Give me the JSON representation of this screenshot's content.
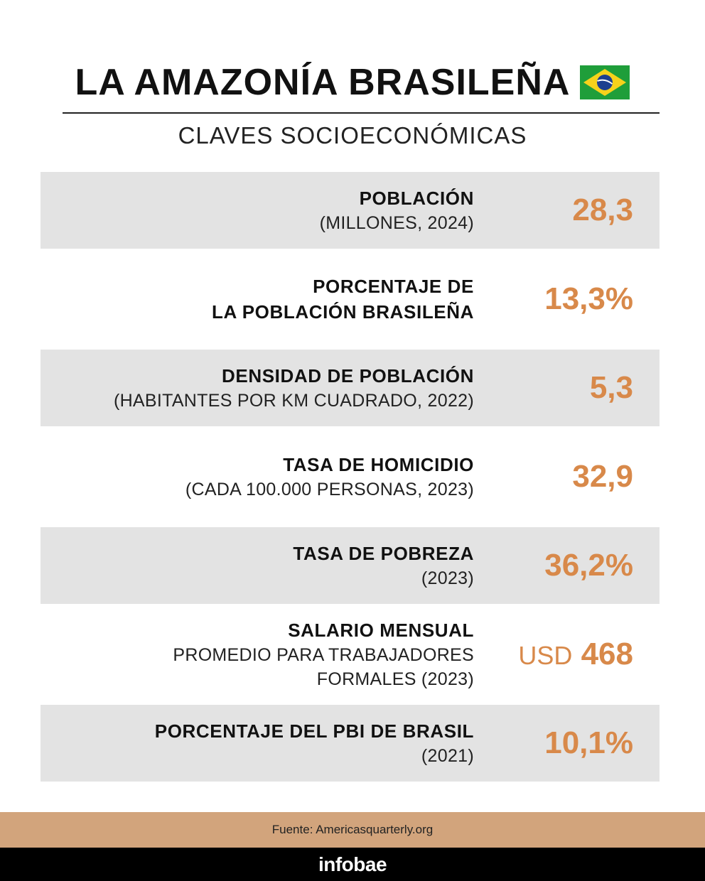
{
  "header": {
    "title": "LA AMAZONÍA BRASILEÑA",
    "subtitle": "CLAVES SOCIOECONÓMICAS"
  },
  "rows": [
    {
      "label_lines": [
        "POBLACIÓN"
      ],
      "sublabel_lines": [
        "(MILLONES, 2024)"
      ],
      "value": "28,3"
    },
    {
      "label_lines": [
        "PORCENTAJE DE",
        "LA POBLACIÓN BRASILEÑA"
      ],
      "value": "13,3%"
    },
    {
      "label_lines": [
        "DENSIDAD DE POBLACIÓN"
      ],
      "sublabel_lines": [
        "(HABITANTES POR KM CUADRADO, 2022)"
      ],
      "value": "5,3"
    },
    {
      "label_lines": [
        "TASA DE HOMICIDIO"
      ],
      "sublabel_lines": [
        "(CADA 100.000 PERSONAS, 2023)"
      ],
      "value": "32,9"
    },
    {
      "label_lines": [
        "TASA DE POBREZA"
      ],
      "sublabel_lines": [
        "(2023)"
      ],
      "value": "36,2%"
    },
    {
      "label_lines": [
        "SALARIO MENSUAL"
      ],
      "sublabel_lines": [
        "PROMEDIO PARA TRABAJADORES",
        "FORMALES (2023)"
      ],
      "unit": "USD",
      "value": "468"
    },
    {
      "label_lines": [
        "PORCENTAJE DEL PBI DE BRASIL"
      ],
      "sublabel_lines": [
        "(2021)"
      ],
      "value": "10,1%"
    }
  ],
  "footer": {
    "source": "Fuente: Americasquarterly.org",
    "brand": "infobae"
  }
}
